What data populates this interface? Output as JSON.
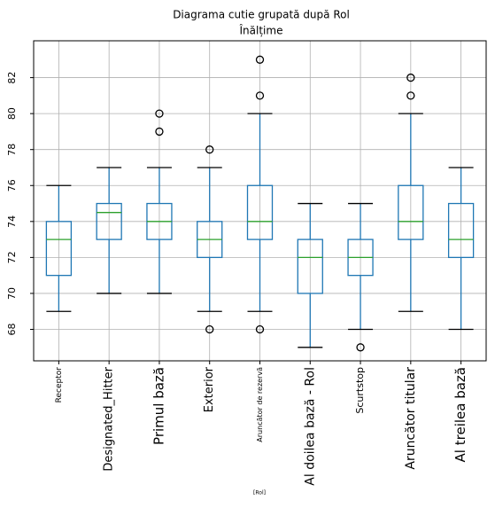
{
  "chart_data": {
    "type": "box",
    "title": "Diagrama cutie grupată după Rol",
    "subtitle": "Înălțime",
    "x_label": "[Rol]",
    "categories": [
      "Receptor",
      "Designated_Hitter",
      "Primul bază",
      "Exterior",
      "Aruncător de rezervă",
      "Al doilea bază - Rol",
      "Scurtstop",
      "Aruncător titular",
      "Al treilea bază"
    ],
    "boxes": [
      {
        "whisker_low": 69,
        "q1": 71,
        "median": 73,
        "q3": 74,
        "whisker_high": 76,
        "outliers": []
      },
      {
        "whisker_low": 70,
        "q1": 73,
        "median": 74.5,
        "q3": 75,
        "whisker_high": 77,
        "outliers": []
      },
      {
        "whisker_low": 70,
        "q1": 73,
        "median": 74,
        "q3": 75,
        "whisker_high": 77,
        "outliers": [
          79,
          80
        ]
      },
      {
        "whisker_low": 69,
        "q1": 72,
        "median": 73,
        "q3": 74,
        "whisker_high": 77,
        "outliers": [
          78,
          68
        ]
      },
      {
        "whisker_low": 69,
        "q1": 73,
        "median": 74,
        "q3": 76,
        "whisker_high": 80,
        "outliers": [
          83,
          81,
          68
        ]
      },
      {
        "whisker_low": 67,
        "q1": 70,
        "median": 72,
        "q3": 73,
        "whisker_high": 75,
        "outliers": []
      },
      {
        "whisker_low": 68,
        "q1": 71,
        "median": 72,
        "q3": 73,
        "whisker_high": 75,
        "outliers": [
          67
        ]
      },
      {
        "whisker_low": 69,
        "q1": 73,
        "median": 74,
        "q3": 76,
        "whisker_high": 80,
        "outliers": [
          82,
          81
        ]
      },
      {
        "whisker_low": 68,
        "q1": 72,
        "median": 73,
        "q3": 75,
        "whisker_high": 77,
        "outliers": []
      }
    ],
    "color": "#1f77b4",
    "median_color": "#2ca02c",
    "ylim": [
      66.25,
      84.05
    ],
    "yticks": [
      68,
      70,
      72,
      74,
      76,
      78,
      80,
      82
    ],
    "grid": true
  }
}
